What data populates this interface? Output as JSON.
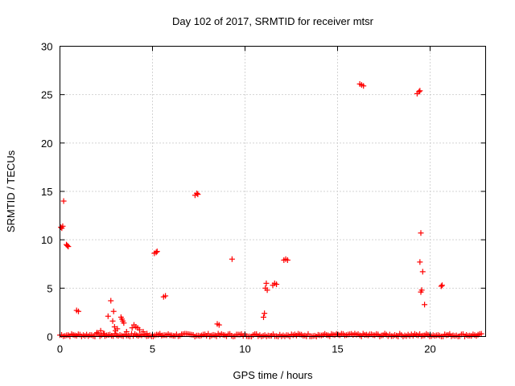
{
  "chart_data": {
    "type": "scatter",
    "title": "Day 102 of 2017, SRMTID for receiver mtsr",
    "xlabel": "GPS time / hours",
    "ylabel": "SRMTID / TECUs",
    "xlim": [
      0,
      23.0
    ],
    "ylim": [
      0,
      30
    ],
    "xticks": [
      0,
      5,
      10,
      15,
      20
    ],
    "yticks": [
      0,
      5,
      10,
      15,
      20,
      25,
      30
    ],
    "grid": true,
    "marker": "+",
    "color": "#ff0000",
    "series": [
      {
        "name": "SRMTID",
        "points": [
          [
            0.05,
            11.3
          ],
          [
            0.1,
            11.2
          ],
          [
            0.15,
            11.4
          ],
          [
            0.2,
            14.0
          ],
          [
            0.35,
            9.5
          ],
          [
            0.4,
            9.4
          ],
          [
            0.45,
            9.3
          ],
          [
            0.9,
            2.7
          ],
          [
            1.0,
            2.6
          ],
          [
            2.0,
            0.4
          ],
          [
            2.2,
            0.6
          ],
          [
            2.4,
            0.3
          ],
          [
            2.6,
            2.1
          ],
          [
            2.75,
            3.7
          ],
          [
            2.85,
            1.6
          ],
          [
            2.9,
            2.6
          ],
          [
            2.95,
            1.0
          ],
          [
            3.0,
            0.6
          ],
          [
            3.1,
            0.8
          ],
          [
            3.3,
            2.0
          ],
          [
            3.35,
            1.8
          ],
          [
            3.4,
            1.6
          ],
          [
            3.45,
            1.4
          ],
          [
            3.6,
            0.5
          ],
          [
            3.9,
            0.9
          ],
          [
            4.0,
            1.2
          ],
          [
            4.1,
            1.0
          ],
          [
            4.2,
            0.9
          ],
          [
            4.3,
            0.7
          ],
          [
            4.5,
            0.5
          ],
          [
            4.7,
            0.3
          ],
          [
            5.1,
            8.6
          ],
          [
            5.2,
            8.7
          ],
          [
            5.25,
            8.8
          ],
          [
            5.6,
            4.1
          ],
          [
            5.7,
            4.2
          ],
          [
            7.3,
            14.6
          ],
          [
            7.4,
            14.8
          ],
          [
            7.45,
            14.7
          ],
          [
            8.5,
            1.3
          ],
          [
            8.6,
            1.2
          ],
          [
            9.3,
            8.0
          ],
          [
            11.0,
            2.0
          ],
          [
            11.05,
            2.4
          ],
          [
            11.1,
            5.0
          ],
          [
            11.15,
            5.5
          ],
          [
            11.2,
            4.8
          ],
          [
            11.5,
            5.3
          ],
          [
            11.6,
            5.5
          ],
          [
            11.7,
            5.4
          ],
          [
            12.1,
            7.9
          ],
          [
            12.2,
            8.0
          ],
          [
            12.3,
            7.9
          ],
          [
            16.2,
            26.1
          ],
          [
            16.3,
            26.0
          ],
          [
            16.4,
            25.9
          ],
          [
            19.3,
            25.1
          ],
          [
            19.4,
            25.3
          ],
          [
            19.45,
            25.4
          ],
          [
            19.45,
            7.7
          ],
          [
            19.5,
            10.7
          ],
          [
            19.55,
            4.8
          ],
          [
            19.5,
            4.6
          ],
          [
            19.6,
            6.7
          ],
          [
            19.7,
            3.3
          ],
          [
            20.6,
            5.2
          ],
          [
            20.65,
            5.3
          ]
        ]
      }
    ],
    "baseline": {
      "name": "SRMTID near zero",
      "x_range": [
        0,
        22.8
      ],
      "y_range": [
        0.0,
        0.3
      ]
    }
  }
}
